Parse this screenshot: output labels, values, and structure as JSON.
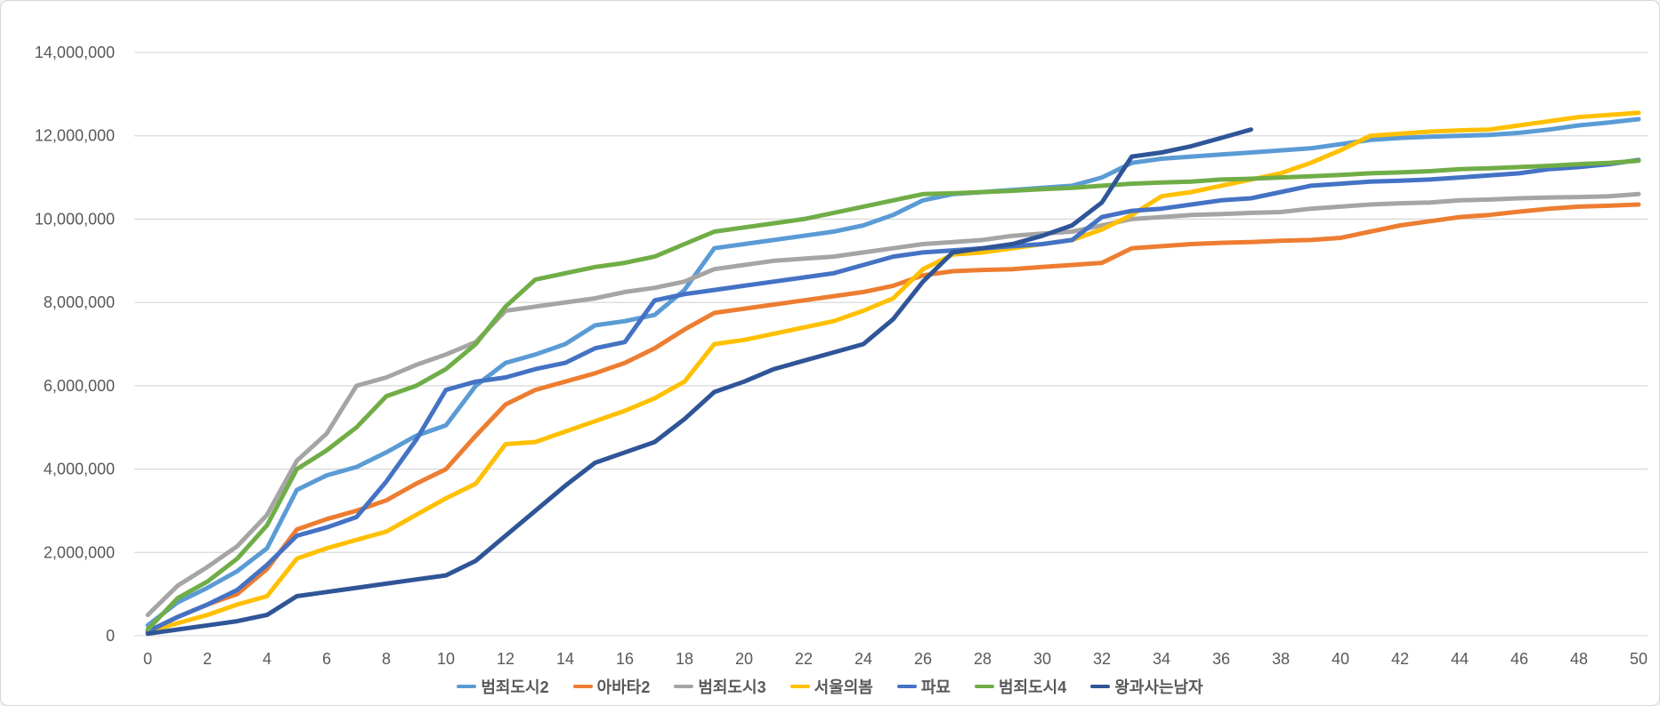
{
  "window": {
    "background_color": "#FFFFFF",
    "border_color": "#D6D6D6"
  },
  "chart_data": {
    "type": "line",
    "title": "",
    "xlabel": "",
    "ylabel": "",
    "xlim": [
      0,
      50
    ],
    "ylim": [
      0,
      14000000
    ],
    "grid": true,
    "legend_position": "bottom",
    "gridline_color": "#D9D9D9",
    "axis_text_color": "#595959",
    "x_ticks": [
      "0",
      "2",
      "4",
      "6",
      "8",
      "10",
      "12",
      "14",
      "16",
      "18",
      "20",
      "22",
      "24",
      "26",
      "28",
      "30",
      "32",
      "34",
      "36",
      "38",
      "40",
      "42",
      "44",
      "46",
      "48",
      "50"
    ],
    "y_ticks": [
      "0",
      "2,000,000",
      "4,000,000",
      "6,000,000",
      "8,000,000",
      "10,000,000",
      "12,000,000",
      "14,000,000"
    ],
    "x_start_day": 0,
    "x_step": 1,
    "series": [
      {
        "name": "범죄도시2",
        "color": "#5B9BD5",
        "values": [
          250000,
          800000,
          1150000,
          1550000,
          2100000,
          3500000,
          3850000,
          4050000,
          4400000,
          4800000,
          5050000,
          6000000,
          6550000,
          6750000,
          7000000,
          7450000,
          7550000,
          7700000,
          8300000,
          9300000,
          9400000,
          9500000,
          9600000,
          9700000,
          9850000,
          10100000,
          10450000,
          10600000,
          10650000,
          10700000,
          10750000,
          10800000,
          11000000,
          11350000,
          11450000,
          11500000,
          11550000,
          11600000,
          11650000,
          11700000,
          11800000,
          11900000,
          11950000,
          11980000,
          12000000,
          12020000,
          12070000,
          12150000,
          12250000,
          12320000,
          12400000
        ]
      },
      {
        "name": "아바타2",
        "color": "#ED7D31",
        "values": [
          100000,
          450000,
          750000,
          1000000,
          1600000,
          2550000,
          2800000,
          3000000,
          3250000,
          3650000,
          4000000,
          4800000,
          5550000,
          5900000,
          6100000,
          6300000,
          6550000,
          6900000,
          7350000,
          7750000,
          7850000,
          7950000,
          8050000,
          8150000,
          8250000,
          8400000,
          8650000,
          8750000,
          8780000,
          8800000,
          8850000,
          8900000,
          8950000,
          9300000,
          9350000,
          9400000,
          9430000,
          9450000,
          9480000,
          9500000,
          9550000,
          9700000,
          9850000,
          9950000,
          10050000,
          10100000,
          10180000,
          10250000,
          10300000,
          10320000,
          10350000
        ]
      },
      {
        "name": "범죄도시3",
        "color": "#A5A5A5",
        "values": [
          500000,
          1200000,
          1650000,
          2150000,
          2900000,
          4200000,
          4850000,
          6000000,
          6200000,
          6500000,
          6750000,
          7050000,
          7800000,
          7900000,
          8000000,
          8100000,
          8250000,
          8350000,
          8500000,
          8800000,
          8900000,
          9000000,
          9050000,
          9100000,
          9200000,
          9300000,
          9400000,
          9450000,
          9500000,
          9600000,
          9650000,
          9700000,
          9850000,
          10000000,
          10050000,
          10100000,
          10120000,
          10150000,
          10170000,
          10250000,
          10300000,
          10350000,
          10380000,
          10400000,
          10450000,
          10470000,
          10500000,
          10520000,
          10530000,
          10550000,
          10600000
        ]
      },
      {
        "name": "서울의봄",
        "color": "#FFC000",
        "values": [
          100000,
          300000,
          500000,
          750000,
          950000,
          1850000,
          2100000,
          2300000,
          2500000,
          2900000,
          3300000,
          3650000,
          4600000,
          4650000,
          4900000,
          5150000,
          5400000,
          5700000,
          6100000,
          7000000,
          7100000,
          7250000,
          7400000,
          7550000,
          7800000,
          8100000,
          8800000,
          9150000,
          9200000,
          9300000,
          9400000,
          9500000,
          9750000,
          10100000,
          10550000,
          10650000,
          10800000,
          10950000,
          11100000,
          11350000,
          11650000,
          12000000,
          12050000,
          12100000,
          12130000,
          12150000,
          12250000,
          12350000,
          12450000,
          12500000,
          12550000
        ]
      },
      {
        "name": "파묘",
        "color": "#4472C4",
        "values": [
          100000,
          450000,
          750000,
          1100000,
          1700000,
          2400000,
          2600000,
          2850000,
          3700000,
          4700000,
          5900000,
          6100000,
          6200000,
          6400000,
          6550000,
          6900000,
          7050000,
          8050000,
          8200000,
          8300000,
          8400000,
          8500000,
          8600000,
          8700000,
          8900000,
          9100000,
          9200000,
          9250000,
          9300000,
          9350000,
          9400000,
          9500000,
          10050000,
          10200000,
          10250000,
          10350000,
          10450000,
          10500000,
          10650000,
          10800000,
          10850000,
          10900000,
          10920000,
          10950000,
          11000000,
          11050000,
          11100000,
          11200000,
          11250000,
          11320000,
          11420000
        ]
      },
      {
        "name": "범죄도시4",
        "color": "#70AD47",
        "values": [
          150000,
          900000,
          1300000,
          1850000,
          2650000,
          4000000,
          4450000,
          5000000,
          5750000,
          6000000,
          6400000,
          7000000,
          7900000,
          8550000,
          8700000,
          8850000,
          8950000,
          9100000,
          9400000,
          9700000,
          9800000,
          9900000,
          10000000,
          10150000,
          10300000,
          10450000,
          10600000,
          10620000,
          10650000,
          10680000,
          10720000,
          10750000,
          10800000,
          10850000,
          10880000,
          10900000,
          10950000,
          10970000,
          11000000,
          11030000,
          11060000,
          11100000,
          11120000,
          11150000,
          11200000,
          11220000,
          11250000,
          11280000,
          11320000,
          11350000,
          11400000
        ]
      },
      {
        "name": "왕과사는남자",
        "color": "#2F5597",
        "values": [
          50000,
          150000,
          250000,
          350000,
          500000,
          950000,
          1050000,
          1150000,
          1250000,
          1350000,
          1450000,
          1800000,
          2400000,
          3000000,
          3600000,
          4150000,
          4400000,
          4650000,
          5200000,
          5850000,
          6100000,
          6400000,
          6600000,
          6800000,
          7000000,
          7600000,
          8500000,
          9200000,
          9300000,
          9400000,
          9600000,
          9850000,
          10400000,
          11500000,
          11600000,
          11750000,
          11950000,
          12150000
        ]
      }
    ]
  }
}
